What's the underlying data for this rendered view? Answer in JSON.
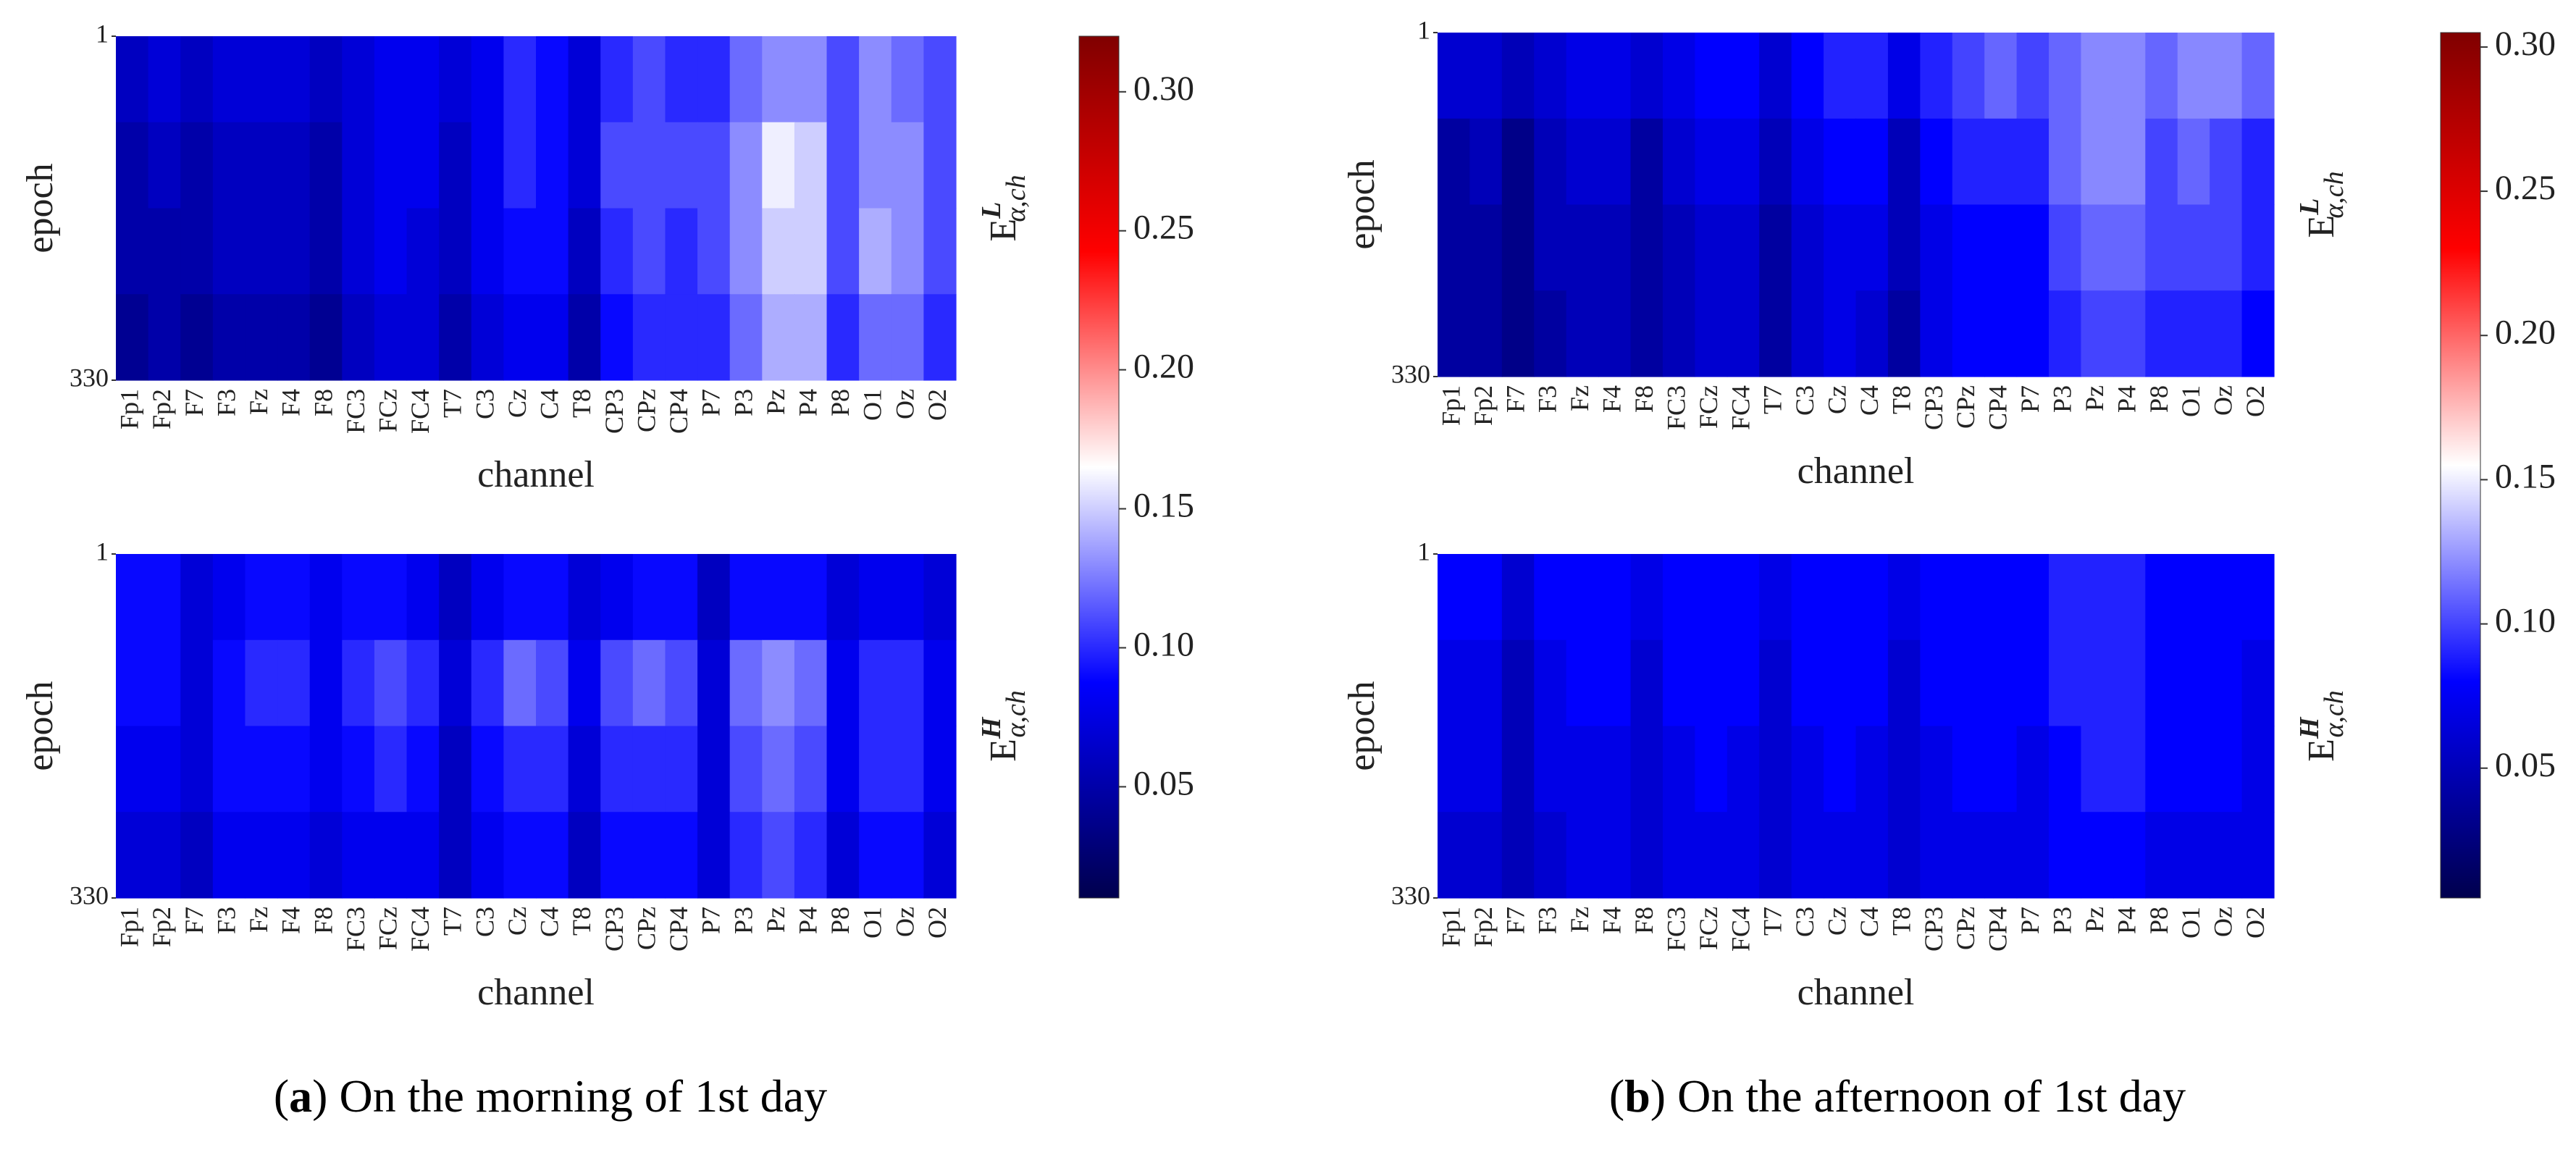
{
  "chart_data": [
    {
      "type": "heatmap",
      "xlabel": "channel",
      "ylabel": "epoch",
      "categories": [
        "Fp1",
        "Fp2",
        "F7",
        "F3",
        "Fz",
        "F4",
        "F8",
        "FC3",
        "FCz",
        "FC4",
        "T7",
        "C3",
        "Cz",
        "C4",
        "T8",
        "CP3",
        "CPz",
        "CP4",
        "P7",
        "P3",
        "Pz",
        "P4",
        "P8",
        "O1",
        "Oz",
        "O2"
      ],
      "ylim": [
        1,
        330
      ],
      "yticks": [
        1,
        330
      ],
      "zlabel": {
        "base": "E",
        "sup": "L",
        "sub": "α,ch"
      },
      "zlim": [
        0.01,
        0.32
      ],
      "colorscale": [
        "#00004d",
        "#0000ff",
        "#ffffff",
        "#ff0000",
        "#800000"
      ],
      "colorbar": {
        "ticks": [
          0.05,
          {
            "value": 0.1,
            "label": "0.10"
          },
          0.15,
          {
            "value": 0.2,
            "label": "0.20"
          },
          0.25,
          {
            "value": 0.3,
            "label": "0.30"
          }
        ]
      },
      "z": [
        [
          0.06,
          0.07,
          0.06,
          0.07,
          0.07,
          0.07,
          0.06,
          0.07,
          0.08,
          0.08,
          0.07,
          0.08,
          0.1,
          0.09,
          0.07,
          0.1,
          0.11,
          0.1,
          0.1,
          0.12,
          0.13,
          0.13,
          0.11,
          0.13,
          0.12,
          0.11
        ],
        [
          0.05,
          0.06,
          0.05,
          0.06,
          0.06,
          0.06,
          0.05,
          0.07,
          0.08,
          0.08,
          0.06,
          0.08,
          0.1,
          0.09,
          0.07,
          0.11,
          0.11,
          0.11,
          0.11,
          0.13,
          0.16,
          0.15,
          0.11,
          0.13,
          0.13,
          0.11
        ],
        [
          0.05,
          0.05,
          0.05,
          0.06,
          0.06,
          0.06,
          0.05,
          0.07,
          0.08,
          0.07,
          0.06,
          0.08,
          0.09,
          0.09,
          0.06,
          0.1,
          0.11,
          0.1,
          0.11,
          0.13,
          0.15,
          0.15,
          0.11,
          0.14,
          0.13,
          0.11
        ],
        [
          0.04,
          0.05,
          0.04,
          0.05,
          0.05,
          0.05,
          0.04,
          0.06,
          0.07,
          0.07,
          0.05,
          0.07,
          0.08,
          0.08,
          0.05,
          0.09,
          0.1,
          0.1,
          0.1,
          0.12,
          0.14,
          0.14,
          0.1,
          0.12,
          0.12,
          0.1
        ]
      ]
    },
    {
      "type": "heatmap",
      "xlabel": "channel",
      "ylabel": "epoch",
      "categories": [
        "Fp1",
        "Fp2",
        "F7",
        "F3",
        "Fz",
        "F4",
        "F8",
        "FC3",
        "FCz",
        "FC4",
        "T7",
        "C3",
        "Cz",
        "C4",
        "T8",
        "CP3",
        "CPz",
        "CP4",
        "P7",
        "P3",
        "Pz",
        "P4",
        "P8",
        "O1",
        "Oz",
        "O2"
      ],
      "ylim": [
        1,
        330
      ],
      "yticks": [
        1,
        330
      ],
      "zlabel": {
        "base": "E",
        "sup": "H",
        "sub": "α,ch"
      },
      "zlim": [
        0.01,
        0.32
      ],
      "colorscale": [
        "#00004d",
        "#0000ff",
        "#ffffff",
        "#ff0000",
        "#800000"
      ],
      "z": [
        [
          0.09,
          0.09,
          0.07,
          0.08,
          0.09,
          0.09,
          0.08,
          0.09,
          0.09,
          0.08,
          0.06,
          0.08,
          0.09,
          0.09,
          0.07,
          0.08,
          0.09,
          0.09,
          0.06,
          0.09,
          0.09,
          0.09,
          0.07,
          0.08,
          0.08,
          0.07
        ],
        [
          0.09,
          0.09,
          0.07,
          0.09,
          0.1,
          0.1,
          0.08,
          0.1,
          0.11,
          0.1,
          0.07,
          0.1,
          0.12,
          0.11,
          0.08,
          0.11,
          0.12,
          0.11,
          0.07,
          0.12,
          0.13,
          0.12,
          0.08,
          0.1,
          0.1,
          0.08
        ],
        [
          0.08,
          0.08,
          0.07,
          0.09,
          0.09,
          0.09,
          0.08,
          0.09,
          0.1,
          0.09,
          0.06,
          0.09,
          0.1,
          0.1,
          0.07,
          0.1,
          0.1,
          0.1,
          0.07,
          0.11,
          0.12,
          0.11,
          0.08,
          0.1,
          0.1,
          0.08
        ],
        [
          0.07,
          0.07,
          0.06,
          0.08,
          0.08,
          0.08,
          0.07,
          0.08,
          0.08,
          0.08,
          0.06,
          0.08,
          0.09,
          0.09,
          0.06,
          0.09,
          0.09,
          0.09,
          0.07,
          0.1,
          0.11,
          0.1,
          0.07,
          0.09,
          0.09,
          0.07
        ]
      ]
    },
    {
      "type": "heatmap",
      "xlabel": "channel",
      "ylabel": "epoch",
      "categories": [
        "Fp1",
        "Fp2",
        "F7",
        "F3",
        "Fz",
        "F4",
        "F8",
        "FC3",
        "FCz",
        "FC4",
        "T7",
        "C3",
        "Cz",
        "C4",
        "T8",
        "CP3",
        "CPz",
        "CP4",
        "P7",
        "P3",
        "Pz",
        "P4",
        "P8",
        "O1",
        "Oz",
        "O2"
      ],
      "ylim": [
        1,
        330
      ],
      "yticks": [
        1,
        330
      ],
      "zlabel": {
        "base": "E",
        "sup": "L",
        "sub": "α,ch"
      },
      "zlim": [
        0.005,
        0.305
      ],
      "colorscale": [
        "#00004d",
        "#0000ff",
        "#ffffff",
        "#ff0000",
        "#800000"
      ],
      "colorbar": {
        "ticks": [
          0.05,
          {
            "value": 0.1,
            "label": "0.10"
          },
          0.15,
          {
            "value": 0.2,
            "label": "0.20"
          },
          0.25,
          {
            "value": 0.3,
            "label": "0.30"
          }
        ]
      },
      "z": [
        [
          0.06,
          0.06,
          0.05,
          0.06,
          0.07,
          0.07,
          0.06,
          0.07,
          0.08,
          0.08,
          0.06,
          0.08,
          0.09,
          0.09,
          0.07,
          0.09,
          0.1,
          0.11,
          0.1,
          0.11,
          0.12,
          0.12,
          0.11,
          0.12,
          0.12,
          0.11
        ],
        [
          0.04,
          0.05,
          0.03,
          0.05,
          0.06,
          0.06,
          0.04,
          0.06,
          0.07,
          0.07,
          0.05,
          0.07,
          0.08,
          0.08,
          0.05,
          0.08,
          0.09,
          0.09,
          0.09,
          0.11,
          0.12,
          0.12,
          0.1,
          0.11,
          0.1,
          0.09
        ],
        [
          0.04,
          0.04,
          0.03,
          0.05,
          0.05,
          0.05,
          0.04,
          0.05,
          0.06,
          0.06,
          0.04,
          0.06,
          0.07,
          0.07,
          0.05,
          0.07,
          0.08,
          0.08,
          0.08,
          0.1,
          0.11,
          0.11,
          0.1,
          0.1,
          0.1,
          0.09
        ],
        [
          0.04,
          0.04,
          0.03,
          0.04,
          0.05,
          0.05,
          0.04,
          0.05,
          0.06,
          0.06,
          0.04,
          0.06,
          0.07,
          0.06,
          0.04,
          0.07,
          0.08,
          0.08,
          0.08,
          0.09,
          0.1,
          0.1,
          0.09,
          0.09,
          0.09,
          0.08
        ]
      ]
    },
    {
      "type": "heatmap",
      "xlabel": "channel",
      "ylabel": "epoch",
      "categories": [
        "Fp1",
        "Fp2",
        "F7",
        "F3",
        "Fz",
        "F4",
        "F8",
        "FC3",
        "FCz",
        "FC4",
        "T7",
        "C3",
        "Cz",
        "C4",
        "T8",
        "CP3",
        "CPz",
        "CP4",
        "P7",
        "P3",
        "Pz",
        "P4",
        "P8",
        "O1",
        "Oz",
        "O2"
      ],
      "ylim": [
        1,
        330
      ],
      "yticks": [
        1,
        330
      ],
      "zlabel": {
        "base": "E",
        "sup": "H",
        "sub": "α,ch"
      },
      "zlim": [
        0.005,
        0.305
      ],
      "colorscale": [
        "#00004d",
        "#0000ff",
        "#ffffff",
        "#ff0000",
        "#800000"
      ],
      "z": [
        [
          0.08,
          0.08,
          0.06,
          0.08,
          0.08,
          0.08,
          0.07,
          0.08,
          0.08,
          0.08,
          0.07,
          0.08,
          0.08,
          0.08,
          0.07,
          0.08,
          0.08,
          0.08,
          0.08,
          0.09,
          0.09,
          0.09,
          0.08,
          0.08,
          0.08,
          0.08
        ],
        [
          0.07,
          0.07,
          0.05,
          0.07,
          0.08,
          0.08,
          0.06,
          0.08,
          0.08,
          0.08,
          0.06,
          0.08,
          0.08,
          0.08,
          0.06,
          0.08,
          0.08,
          0.08,
          0.08,
          0.09,
          0.09,
          0.09,
          0.08,
          0.08,
          0.08,
          0.07
        ],
        [
          0.07,
          0.07,
          0.05,
          0.07,
          0.07,
          0.07,
          0.06,
          0.07,
          0.08,
          0.07,
          0.06,
          0.07,
          0.08,
          0.07,
          0.06,
          0.07,
          0.08,
          0.08,
          0.07,
          0.08,
          0.09,
          0.09,
          0.08,
          0.08,
          0.08,
          0.07
        ],
        [
          0.06,
          0.06,
          0.05,
          0.06,
          0.07,
          0.07,
          0.06,
          0.07,
          0.07,
          0.07,
          0.06,
          0.07,
          0.07,
          0.07,
          0.06,
          0.07,
          0.07,
          0.07,
          0.07,
          0.08,
          0.08,
          0.08,
          0.07,
          0.07,
          0.07,
          0.07
        ]
      ]
    }
  ],
  "captions": [
    {
      "letter": "a",
      "text": "On the morning of 1st day"
    },
    {
      "letter": "b",
      "text": "On the afternoon of 1st day"
    }
  ]
}
